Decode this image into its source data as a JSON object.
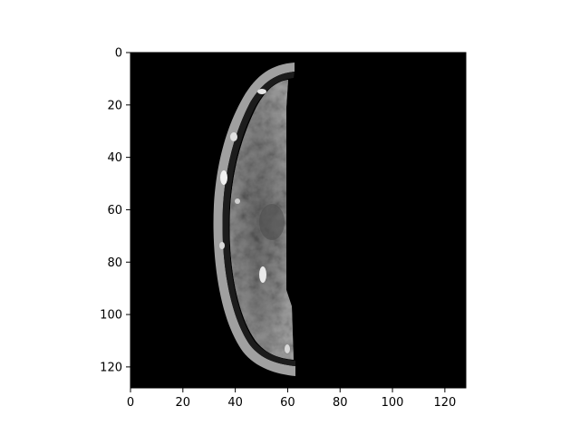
{
  "figure": {
    "colors": {
      "background": "#ffffff",
      "image_background": "#000000",
      "axis": "#000000"
    }
  },
  "image": {
    "colormap": "gray",
    "content": "axial MRI slice, left half of brain visible",
    "pixel_grid": [
      128,
      128
    ]
  },
  "axes": {
    "xlim": [
      0,
      128
    ],
    "ylim_inverted": [
      128,
      0
    ],
    "x_ticks": [
      {
        "value": 0,
        "label": "0"
      },
      {
        "value": 20,
        "label": "20"
      },
      {
        "value": 40,
        "label": "40"
      },
      {
        "value": 60,
        "label": "60"
      },
      {
        "value": 80,
        "label": "80"
      },
      {
        "value": 100,
        "label": "100"
      },
      {
        "value": 120,
        "label": "120"
      }
    ],
    "y_ticks": [
      {
        "value": 0,
        "label": "0"
      },
      {
        "value": 20,
        "label": "20"
      },
      {
        "value": 40,
        "label": "40"
      },
      {
        "value": 60,
        "label": "60"
      },
      {
        "value": 80,
        "label": "80"
      },
      {
        "value": 100,
        "label": "100"
      },
      {
        "value": 120,
        "label": "120"
      }
    ]
  }
}
